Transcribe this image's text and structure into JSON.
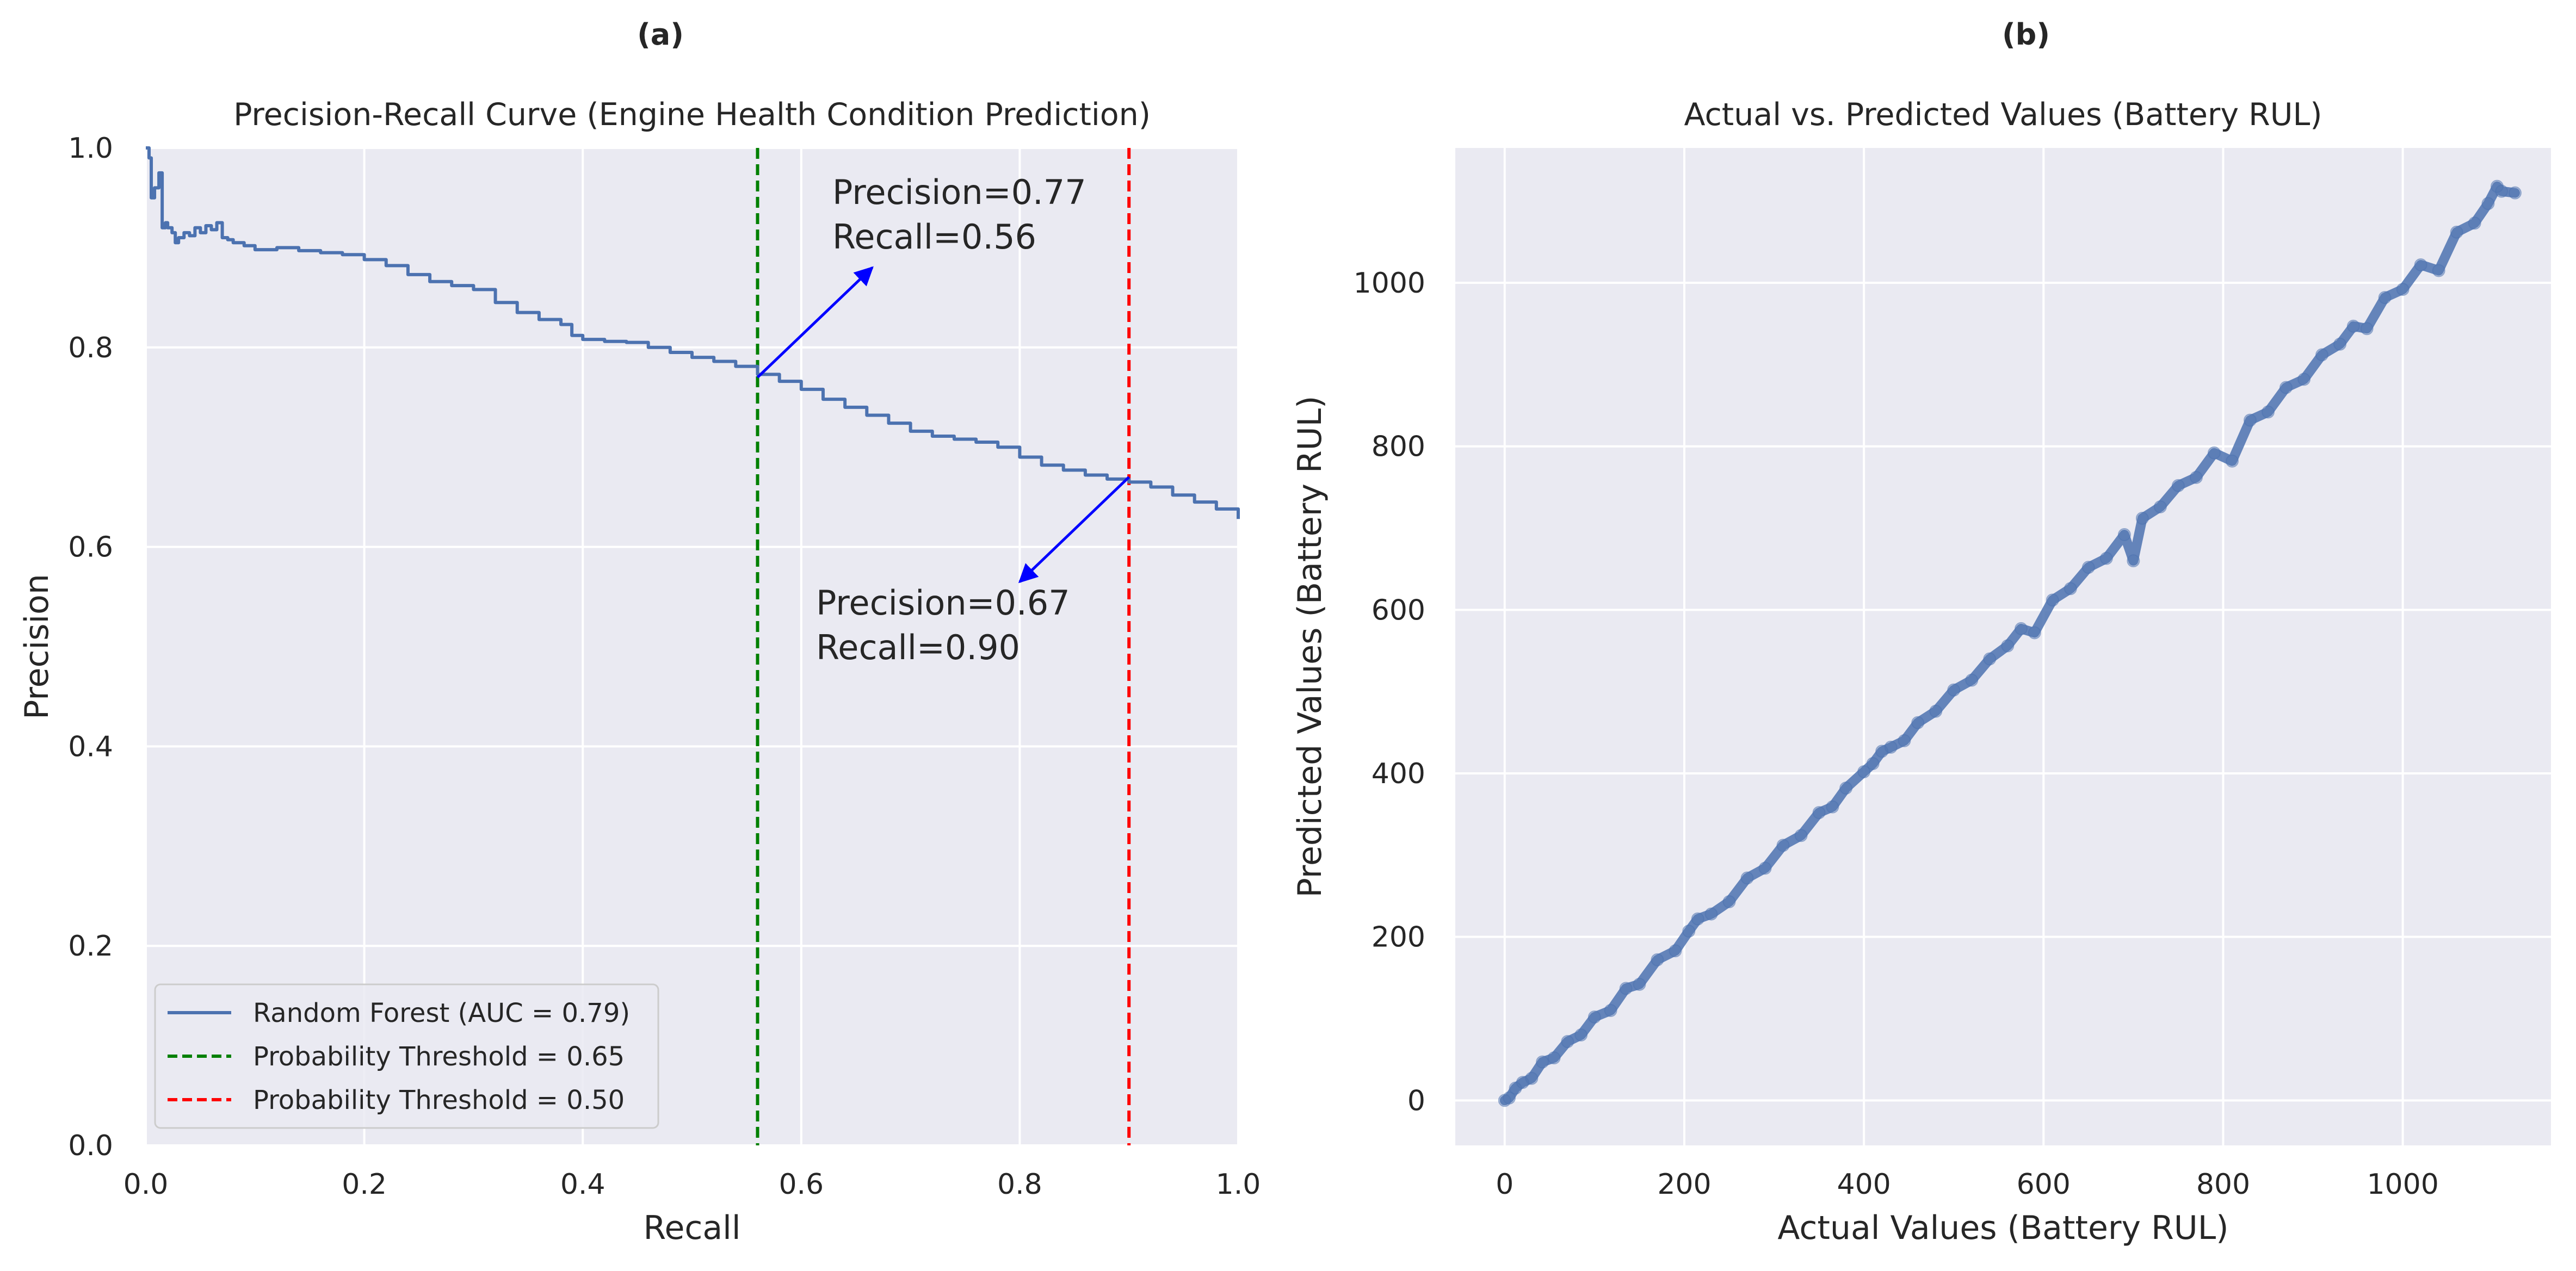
{
  "chart_data": [
    {
      "type": "line",
      "panel_label": "(a)",
      "title": "Precision-Recall Curve (Engine Health Condition Prediction)",
      "xlabel": "Recall",
      "ylabel": "Precision",
      "xlim": [
        0,
        1
      ],
      "ylim": [
        0,
        1
      ],
      "xticks": [
        "0.0",
        "0.2",
        "0.4",
        "0.6",
        "0.8",
        "1.0"
      ],
      "yticks": [
        "0.0",
        "0.2",
        "0.4",
        "0.6",
        "0.8",
        "1.0"
      ],
      "grid": true,
      "legend_position": "lower-left",
      "series": [
        {
          "name": "Random Forest (AUC = 0.79)",
          "color": "#4c72b0",
          "x": [
            0.0,
            0.003,
            0.005,
            0.008,
            0.012,
            0.015,
            0.018,
            0.02,
            0.024,
            0.027,
            0.03,
            0.035,
            0.04,
            0.045,
            0.05,
            0.055,
            0.06,
            0.065,
            0.07,
            0.075,
            0.08,
            0.09,
            0.1,
            0.12,
            0.14,
            0.16,
            0.18,
            0.2,
            0.22,
            0.24,
            0.26,
            0.28,
            0.3,
            0.32,
            0.34,
            0.36,
            0.38,
            0.39,
            0.4,
            0.42,
            0.44,
            0.46,
            0.48,
            0.5,
            0.52,
            0.54,
            0.56,
            0.58,
            0.6,
            0.62,
            0.64,
            0.66,
            0.68,
            0.7,
            0.72,
            0.74,
            0.76,
            0.78,
            0.8,
            0.82,
            0.84,
            0.86,
            0.88,
            0.9,
            0.92,
            0.94,
            0.96,
            0.98,
            1.0
          ],
          "y": [
            1.0,
            0.99,
            0.95,
            0.96,
            0.975,
            0.92,
            0.925,
            0.92,
            0.915,
            0.905,
            0.91,
            0.915,
            0.912,
            0.92,
            0.915,
            0.922,
            0.918,
            0.925,
            0.91,
            0.908,
            0.905,
            0.902,
            0.898,
            0.9,
            0.897,
            0.895,
            0.893,
            0.888,
            0.882,
            0.873,
            0.866,
            0.862,
            0.858,
            0.845,
            0.835,
            0.828,
            0.823,
            0.812,
            0.808,
            0.806,
            0.805,
            0.8,
            0.795,
            0.79,
            0.786,
            0.781,
            0.773,
            0.766,
            0.758,
            0.748,
            0.74,
            0.732,
            0.724,
            0.716,
            0.711,
            0.708,
            0.705,
            0.7,
            0.69,
            0.682,
            0.677,
            0.672,
            0.668,
            0.665,
            0.66,
            0.652,
            0.645,
            0.638,
            0.628
          ]
        },
        {
          "name": "Probability Threshold = 0.65",
          "color": "#008000",
          "style": "dashed",
          "x": 0.56
        },
        {
          "name": "Probability Threshold = 0.50",
          "color": "#ff0000",
          "style": "dashed",
          "x": 0.9
        }
      ],
      "annotations": [
        {
          "lines": [
            "Precision=0.77",
            "Recall=0.56"
          ],
          "point": [
            0.56,
            0.77
          ],
          "arrow_to": [
            0.665,
            0.88
          ],
          "color": "#0000ff"
        },
        {
          "lines": [
            "Precision=0.67",
            "Recall=0.90"
          ],
          "point": [
            0.9,
            0.67
          ],
          "arrow_to": [
            0.8,
            0.565
          ],
          "color": "#0000ff"
        }
      ]
    },
    {
      "type": "scatter",
      "panel_label": "(b)",
      "title": "Actual vs. Predicted Values (Battery RUL)",
      "xlabel": "Actual Values (Battery RUL)",
      "ylabel": "Predicted Values (Battery RUL)",
      "xlim": [
        -55,
        1165
      ],
      "ylim": [
        -55,
        1165
      ],
      "xticks": [
        "0",
        "200",
        "400",
        "600",
        "800",
        "1000"
      ],
      "yticks": [
        "0",
        "200",
        "400",
        "600",
        "800",
        "1000"
      ],
      "grid": true,
      "series": [
        {
          "color": "#4c72b0",
          "x": [
            0,
            5,
            12,
            20,
            30,
            42,
            55,
            70,
            85,
            100,
            118,
            135,
            150,
            170,
            190,
            205,
            215,
            230,
            250,
            270,
            290,
            310,
            330,
            350,
            365,
            380,
            400,
            410,
            420,
            430,
            445,
            460,
            480,
            500,
            520,
            540,
            560,
            575,
            590,
            610,
            630,
            650,
            670,
            690,
            700,
            710,
            730,
            750,
            770,
            790,
            810,
            830,
            850,
            870,
            890,
            910,
            930,
            945,
            960,
            980,
            1000,
            1020,
            1040,
            1060,
            1080,
            1095,
            1105,
            1110,
            1125
          ],
          "y": [
            0,
            3,
            15,
            22,
            27,
            47,
            52,
            72,
            80,
            102,
            110,
            137,
            142,
            172,
            183,
            207,
            222,
            228,
            243,
            272,
            284,
            312,
            324,
            352,
            359,
            382,
            402,
            412,
            427,
            432,
            440,
            462,
            476,
            502,
            514,
            540,
            556,
            577,
            572,
            612,
            626,
            652,
            663,
            692,
            660,
            712,
            726,
            752,
            762,
            792,
            782,
            832,
            842,
            872,
            882,
            912,
            925,
            947,
            944,
            982,
            992,
            1022,
            1015,
            1062,
            1073,
            1097,
            1118,
            1112,
            1110
          ]
        }
      ]
    }
  ]
}
